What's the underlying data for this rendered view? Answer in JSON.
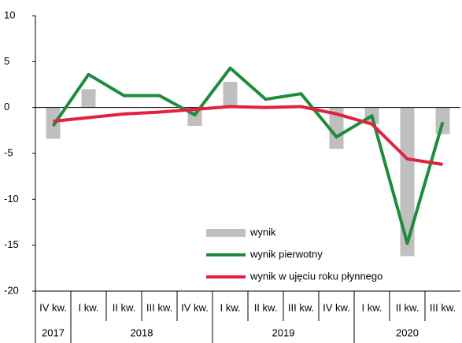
{
  "chart_data": {
    "type": "bar-line",
    "categories": [
      "IV kw.",
      "I kw.",
      "II kw.",
      "III kw.",
      "IV kw.",
      "I kw.",
      "II kw.",
      "III kw.",
      "IV kw.",
      "I kw.",
      "II kw.",
      "III kw."
    ],
    "groups": [
      {
        "label": "2017",
        "span": 1
      },
      {
        "label": "2018",
        "span": 4
      },
      {
        "label": "2019",
        "span": 4
      },
      {
        "label": "2020",
        "span": 3
      }
    ],
    "series": [
      {
        "name": "wynik",
        "kind": "bar",
        "color": "#bfbfbf",
        "values": [
          -3.4,
          2.0,
          0,
          0,
          -2.0,
          2.8,
          0,
          0,
          -4.5,
          -1.8,
          -16.2,
          -2.9
        ]
      },
      {
        "name": "wynik pierwotny",
        "kind": "line",
        "color": "#1e8c3c",
        "values": [
          -2.0,
          3.6,
          1.3,
          1.3,
          -0.8,
          4.3,
          0.9,
          1.5,
          -3.2,
          -0.9,
          -14.8,
          -1.6
        ]
      },
      {
        "name": "wynik w ujęciu roku płynnego",
        "kind": "line",
        "color": "#e2213f",
        "values": [
          -1.5,
          -1.1,
          -0.7,
          -0.5,
          -0.2,
          0.1,
          0.0,
          0.1,
          -0.7,
          -1.8,
          -5.6,
          -6.2
        ]
      }
    ],
    "ylim": [
      -20,
      10
    ],
    "yticks": [
      10,
      5,
      0,
      -5,
      -10,
      -15,
      -20
    ]
  }
}
